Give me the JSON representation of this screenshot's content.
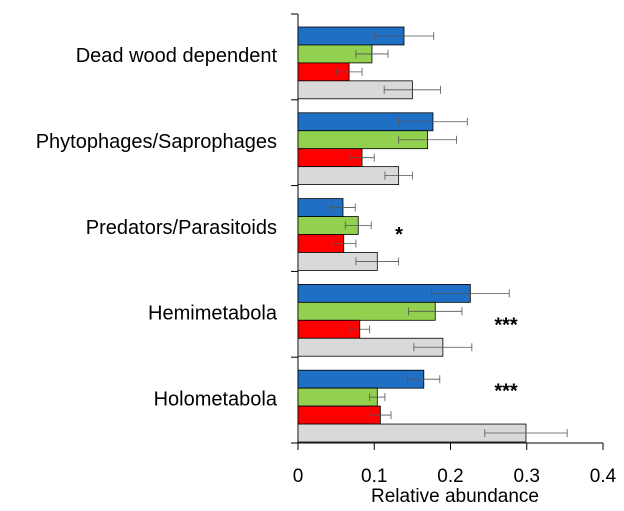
{
  "chart_data": {
    "type": "bar",
    "orientation": "horizontal",
    "xlabel": "Relative abundance",
    "categories": [
      "Dead wood dependent",
      "Phytophages/Saprophages",
      "Predators/Parasitoids",
      "Hemimetabola",
      "Holometabola"
    ],
    "series": [
      {
        "color": "#1f6fc5",
        "values": [
          0.139,
          0.177,
          0.059,
          0.226,
          0.165
        ],
        "errors": [
          0.039,
          0.045,
          0.016,
          0.051,
          0.021
        ]
      },
      {
        "color": "#92d050",
        "values": [
          0.097,
          0.17,
          0.079,
          0.18,
          0.104
        ],
        "errors": [
          0.021,
          0.038,
          0.017,
          0.035,
          0.01
        ]
      },
      {
        "color": "#ff0000",
        "values": [
          0.067,
          0.084,
          0.06,
          0.081,
          0.108
        ],
        "errors": [
          0.017,
          0.016,
          0.016,
          0.013,
          0.014
        ]
      },
      {
        "color": "#d9d9d9",
        "values": [
          0.15,
          0.132,
          0.104,
          0.19,
          0.299
        ],
        "errors": [
          0.037,
          0.018,
          0.028,
          0.038,
          0.054
        ]
      }
    ],
    "xlim": [
      0,
      0.4
    ],
    "xticks": [
      0,
      0.1,
      0.2,
      0.3,
      0.4
    ],
    "annotations": [
      {
        "text": "*",
        "category": "Predators/Parasitoids"
      },
      {
        "text": "***",
        "category": "Hemimetabola"
      },
      {
        "text": "***",
        "category": "Holometabola"
      }
    ]
  }
}
